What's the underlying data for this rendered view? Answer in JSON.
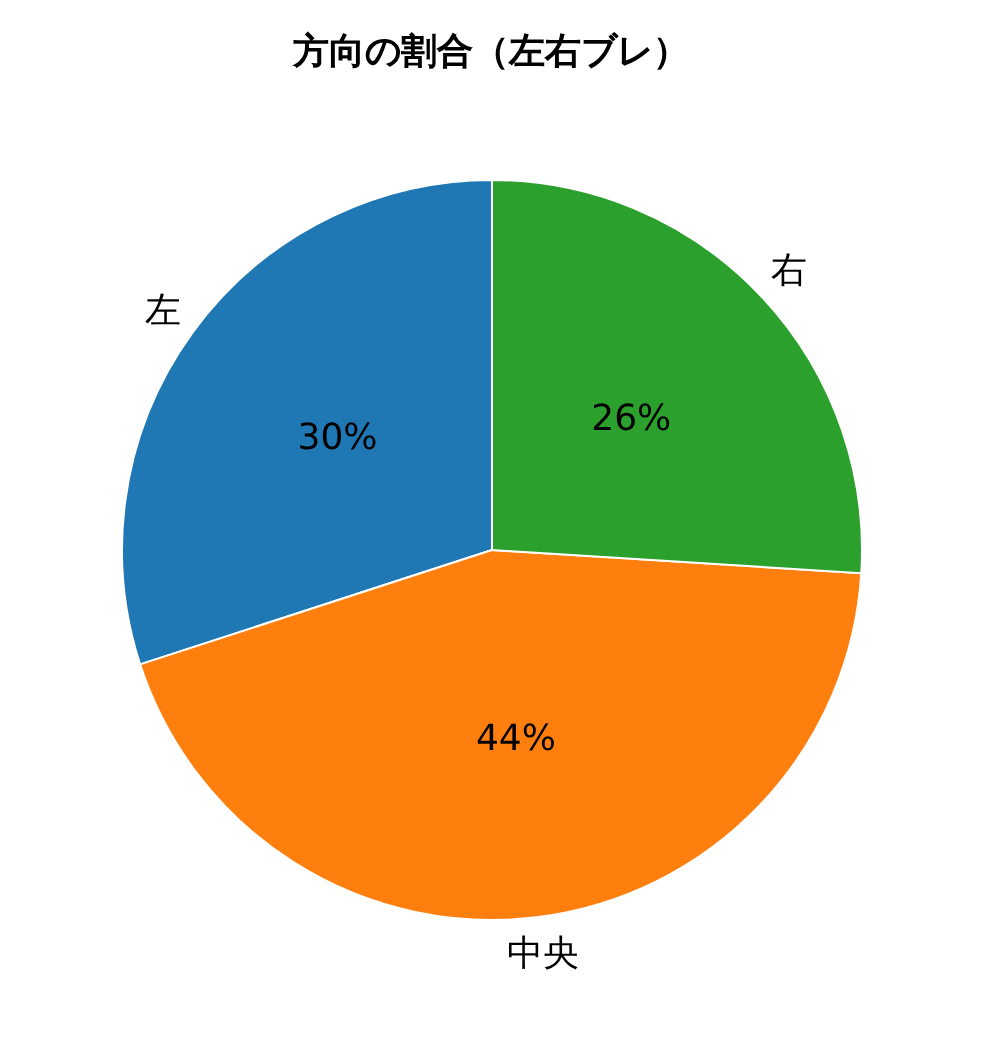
{
  "chart_data": {
    "type": "pie",
    "title": "方向の割合（左右ブレ）",
    "categories": [
      "左",
      "中央",
      "右"
    ],
    "values": [
      30,
      44,
      26
    ],
    "colors": [
      "#1f77b4",
      "#ff7f0e",
      "#2ca02c"
    ],
    "value_labels": [
      "30%",
      "44%",
      "26%"
    ],
    "legend": false
  }
}
